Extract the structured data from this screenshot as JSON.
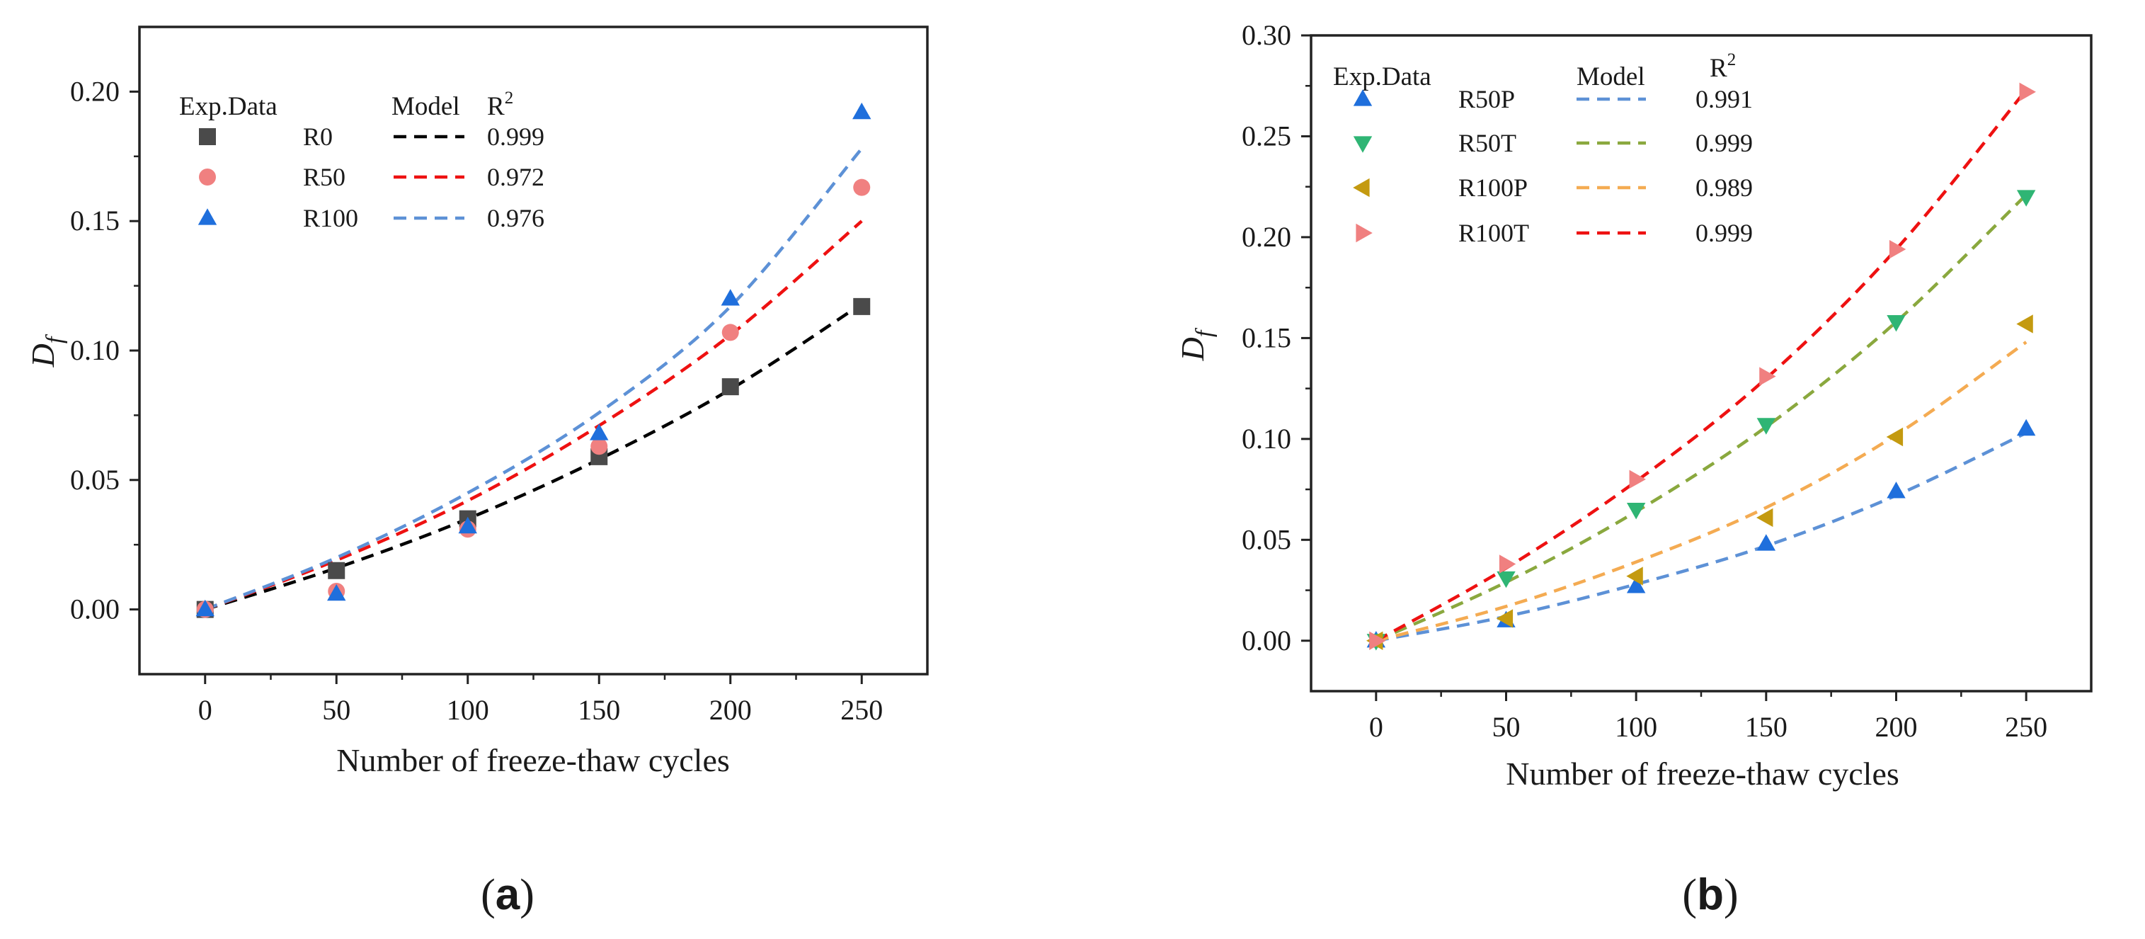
{
  "chart_data": [
    {
      "id": "a",
      "type": "scatter",
      "caption": {
        "open": "(",
        "letter": "a",
        "close": ")"
      },
      "xlabel": "Number of freeze-thaw cycles",
      "ylabel": {
        "main": "D",
        "sub": "f"
      },
      "xlim": [
        -25,
        275
      ],
      "ylim": [
        -0.025,
        0.225
      ],
      "xticks": [
        0,
        50,
        100,
        150,
        200,
        250
      ],
      "xtick_labels": [
        "0",
        "50",
        "100",
        "150",
        "200",
        "250"
      ],
      "yticks": [
        0.0,
        0.05,
        0.1,
        0.15,
        0.2
      ],
      "ytick_labels": [
        "0.00",
        "0.05",
        "0.10",
        "0.15",
        "0.20"
      ],
      "legend_headers": {
        "data": "Exp.Data",
        "model": "Model",
        "r2": "R",
        "r2_sup": "2"
      },
      "x": [
        0,
        50,
        100,
        150,
        200,
        250
      ],
      "series": [
        {
          "name": "R0",
          "marker": "square",
          "color": "#4a4a4a",
          "line_color": "#000000",
          "r2": "0.999",
          "values": [
            0.0,
            0.015,
            0.035,
            0.059,
            0.086,
            0.117
          ],
          "model": [
            0.0,
            0.016,
            0.035,
            0.058,
            0.085,
            0.118
          ]
        },
        {
          "name": "R50",
          "marker": "circle",
          "color": "#f08080",
          "line_color": "#ee1111",
          "r2": "0.972",
          "values": [
            0.0,
            0.007,
            0.031,
            0.063,
            0.107,
            0.163
          ],
          "model": [
            0.0,
            0.019,
            0.042,
            0.071,
            0.106,
            0.15
          ]
        },
        {
          "name": "R100",
          "marker": "triangle-up",
          "color": "#1f6fdc",
          "line_color": "#5d91d6",
          "r2": "0.976",
          "values": [
            0.0,
            0.006,
            0.032,
            0.068,
            0.12,
            0.192
          ],
          "model": [
            0.0,
            0.02,
            0.045,
            0.076,
            0.117,
            0.178
          ]
        }
      ]
    },
    {
      "id": "b",
      "type": "scatter",
      "caption": {
        "open": "(",
        "letter": "b",
        "close": ")"
      },
      "xlabel": "Number of freeze-thaw cycles",
      "ylabel": {
        "main": "D",
        "sub": "f"
      },
      "xlim": [
        -25,
        275
      ],
      "ylim": [
        -0.025,
        0.3
      ],
      "xticks": [
        0,
        50,
        100,
        150,
        200,
        250
      ],
      "xtick_labels": [
        "0",
        "50",
        "100",
        "150",
        "200",
        "250"
      ],
      "yticks": [
        0.0,
        0.05,
        0.1,
        0.15,
        0.2,
        0.25,
        0.3
      ],
      "ytick_labels": [
        "0.00",
        "0.05",
        "0.10",
        "0.15",
        "0.20",
        "0.25",
        "0.30"
      ],
      "legend_headers": {
        "data": "Exp.Data",
        "model": "Model",
        "r2": "R",
        "r2_sup": "2"
      },
      "x": [
        0,
        50,
        100,
        150,
        200,
        250
      ],
      "series": [
        {
          "name": "R50P",
          "marker": "triangle-up",
          "color": "#1f6fdc",
          "line_color": "#5d91d6",
          "r2": "0.991",
          "values": [
            0.0,
            0.01,
            0.027,
            0.048,
            0.074,
            0.105
          ],
          "model": [
            0.0,
            0.012,
            0.028,
            0.047,
            0.072,
            0.103
          ]
        },
        {
          "name": "R50T",
          "marker": "triangle-down",
          "color": "#2fb574",
          "line_color": "#8aa83e",
          "r2": "0.999",
          "values": [
            0.0,
            0.031,
            0.065,
            0.107,
            0.158,
            0.22
          ],
          "model": [
            0.0,
            0.029,
            0.064,
            0.106,
            0.158,
            0.221
          ]
        },
        {
          "name": "R100P",
          "marker": "triangle-left",
          "color": "#c49a10",
          "line_color": "#f4ab52",
          "r2": "0.989",
          "values": [
            0.0,
            0.011,
            0.032,
            0.061,
            0.101,
            0.157
          ],
          "model": [
            0.0,
            0.017,
            0.039,
            0.066,
            0.102,
            0.148
          ]
        },
        {
          "name": "R100T",
          "marker": "triangle-right",
          "color": "#f08080",
          "line_color": "#ee1111",
          "r2": "0.999",
          "values": [
            0.0,
            0.038,
            0.08,
            0.131,
            0.194,
            0.272
          ],
          "model": [
            0.0,
            0.036,
            0.079,
            0.13,
            0.194,
            0.273
          ]
        }
      ]
    }
  ]
}
